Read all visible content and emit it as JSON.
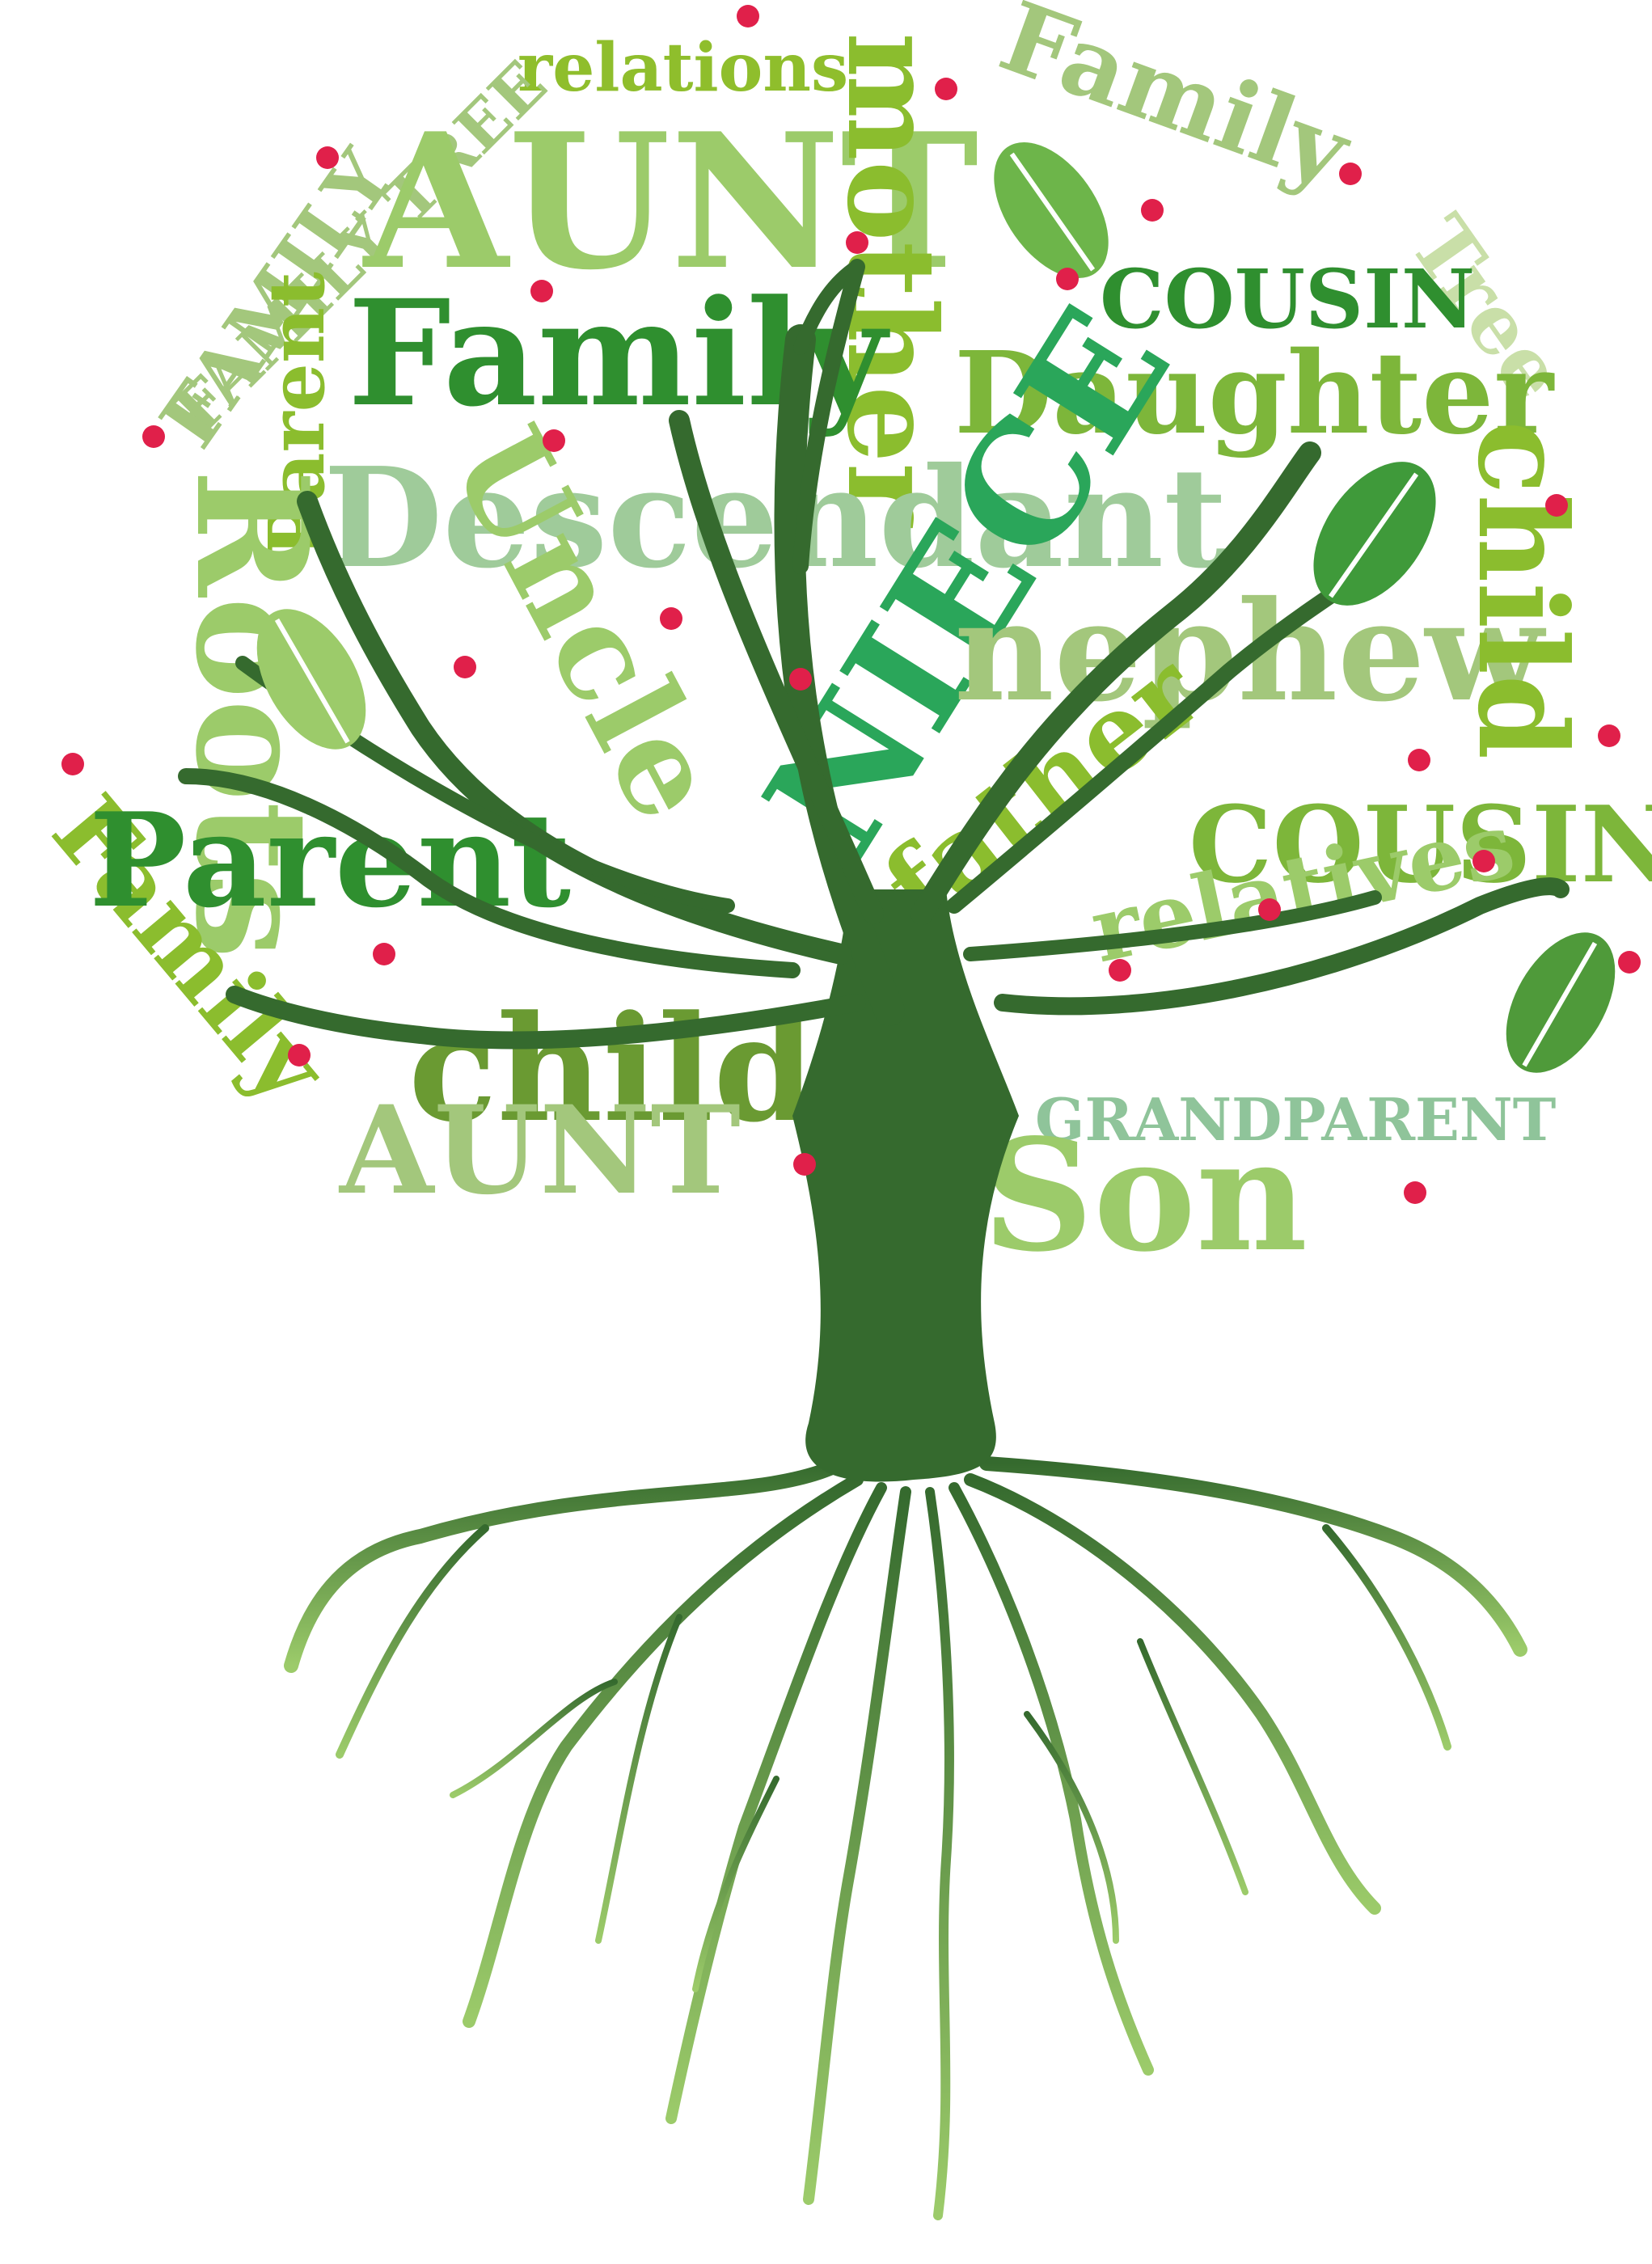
{
  "colors": {
    "trunk": "#356a2e",
    "trunk_light": "#8cbf5c",
    "berry": "#e0204a",
    "leaf_dark": "#4f9a3a",
    "leaf_light": "#9ccb6a"
  },
  "words": {
    "w01": "relations",
    "w02": "FAMILY TREE",
    "w03": "AUNT",
    "w04": "mother",
    "w05": "Family",
    "w06": "Family",
    "w07": "Tree",
    "w08": "COUSIN",
    "w09": "Daughter",
    "w10": "FAMILY",
    "w11": "Parent",
    "w12": "Descendant",
    "w13": "Uncle",
    "w14": "NIECE",
    "w15": "nephew",
    "w16": "child",
    "w17": "Roots",
    "w18": "father",
    "w19": "COUSIN",
    "w20": "Family",
    "w21": "Parent",
    "w22": "relatives",
    "w23": "child",
    "w24": "AUNT",
    "w25": "GRANDPARENT",
    "w26": "Son"
  },
  "decorations": {
    "leaves": [
      "leaf-icon",
      "leaf-icon",
      "leaf-icon",
      "leaf-icon"
    ],
    "berries": "berry-icon"
  }
}
